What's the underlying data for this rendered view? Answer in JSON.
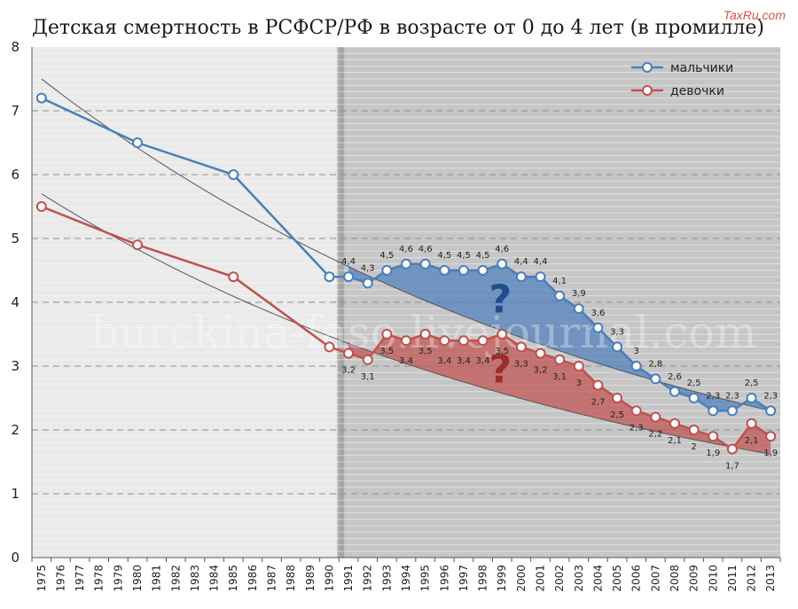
{
  "chart_data": {
    "type": "line",
    "title": "Детская смертность в РСФСР/РФ в возрасте от 0 до 4 лет (в промилле)",
    "brand": "TaxRu.com",
    "watermark": "burckina-faso.livejournal.com",
    "categories": [
      "1975",
      "1976",
      "1977",
      "1978",
      "1979",
      "1980",
      "1981",
      "1982",
      "1983",
      "1984",
      "1985",
      "1986",
      "1987",
      "1988",
      "1989",
      "1990",
      "1991",
      "1992",
      "1993",
      "1994",
      "1995",
      "1996",
      "1997",
      "1998",
      "1999",
      "2000",
      "2001",
      "2002",
      "2003",
      "2004",
      "2005",
      "2006",
      "2007",
      "2008",
      "2009",
      "2010",
      "2011",
      "2012",
      "2013"
    ],
    "ylim": [
      0,
      8
    ],
    "yticks": [
      "0",
      "1",
      "2",
      "3",
      "4",
      "5",
      "6",
      "7",
      "8"
    ],
    "shaded_from": "1991",
    "legend_position": "top-right",
    "series": [
      {
        "name": "мальчики",
        "color": "#4a7ebb",
        "x": [
          "1975",
          "1980",
          "1985",
          "1990",
          "1991",
          "1992",
          "1993",
          "1994",
          "1995",
          "1996",
          "1997",
          "1998",
          "1999",
          "2000",
          "2001",
          "2002",
          "2003",
          "2004",
          "2005",
          "2006",
          "2007",
          "2008",
          "2009",
          "2010",
          "2011",
          "2012",
          "2013"
        ],
        "values": [
          7.2,
          6.5,
          6.0,
          4.4,
          4.4,
          4.3,
          4.5,
          4.6,
          4.6,
          4.5,
          4.5,
          4.5,
          4.6,
          4.4,
          4.4,
          4.1,
          3.9,
          3.6,
          3.3,
          3.0,
          2.8,
          2.6,
          2.5,
          2.3,
          2.3,
          2.5,
          2.3
        ],
        "labels": [
          {
            "x": "1991",
            "text": "4,4"
          },
          {
            "x": "1992",
            "text": "4,3"
          },
          {
            "x": "1993",
            "text": "4,5"
          },
          {
            "x": "1994",
            "text": "4,6"
          },
          {
            "x": "1995",
            "text": "4,6"
          },
          {
            "x": "1996",
            "text": "4,5"
          },
          {
            "x": "1997",
            "text": "4,5"
          },
          {
            "x": "1998",
            "text": "4,5"
          },
          {
            "x": "1999",
            "text": "4,6"
          },
          {
            "x": "2000",
            "text": "4,4"
          },
          {
            "x": "2001",
            "text": "4,4"
          },
          {
            "x": "2002",
            "text": "4,1"
          },
          {
            "x": "2003",
            "text": "3,9"
          },
          {
            "x": "2004",
            "text": "3,6"
          },
          {
            "x": "2005",
            "text": "3,3"
          },
          {
            "x": "2006",
            "text": "3"
          },
          {
            "x": "2007",
            "text": "2,8"
          },
          {
            "x": "2008",
            "text": "2,6"
          },
          {
            "x": "2009",
            "text": "2,5"
          },
          {
            "x": "2010",
            "text": "2,3"
          },
          {
            "x": "2011",
            "text": "2,3"
          },
          {
            "x": "2012",
            "text": "2,5"
          },
          {
            "x": "2013",
            "text": "2,3"
          }
        ],
        "trend": {
          "from": "1975",
          "to": "2013",
          "start": 7.5,
          "end": 2.3
        }
      },
      {
        "name": "девочки",
        "color": "#c0504d",
        "x": [
          "1975",
          "1980",
          "1985",
          "1990",
          "1991",
          "1992",
          "1993",
          "1994",
          "1995",
          "1996",
          "1997",
          "1998",
          "1999",
          "2000",
          "2001",
          "2002",
          "2003",
          "2004",
          "2005",
          "2006",
          "2007",
          "2008",
          "2009",
          "2010",
          "2011",
          "2012",
          "2013"
        ],
        "values": [
          5.5,
          4.9,
          4.4,
          3.3,
          3.2,
          3.1,
          3.5,
          3.4,
          3.5,
          3.4,
          3.4,
          3.4,
          3.5,
          3.3,
          3.2,
          3.1,
          3.0,
          2.7,
          2.5,
          2.3,
          2.2,
          2.1,
          2.0,
          1.9,
          1.7,
          2.1,
          1.9
        ],
        "labels": [
          {
            "x": "1991",
            "text": "3,2"
          },
          {
            "x": "1992",
            "text": "3,1"
          },
          {
            "x": "1993",
            "text": "3,5"
          },
          {
            "x": "1994",
            "text": "3,4"
          },
          {
            "x": "1995",
            "text": "3,5"
          },
          {
            "x": "1996",
            "text": "3,4"
          },
          {
            "x": "1997",
            "text": "3,4"
          },
          {
            "x": "1998",
            "text": "3,4"
          },
          {
            "x": "1999",
            "text": "3,5"
          },
          {
            "x": "2000",
            "text": "3,3"
          },
          {
            "x": "2001",
            "text": "3,2"
          },
          {
            "x": "2002",
            "text": "3,1"
          },
          {
            "x": "2003",
            "text": "3"
          },
          {
            "x": "2004",
            "text": "2,7"
          },
          {
            "x": "2005",
            "text": "2,5"
          },
          {
            "x": "2006",
            "text": "2,3"
          },
          {
            "x": "2007",
            "text": "2,2"
          },
          {
            "x": "2008",
            "text": "2,1"
          },
          {
            "x": "2009",
            "text": "2"
          },
          {
            "x": "2010",
            "text": "1,9"
          },
          {
            "x": "2011",
            "text": "1,7"
          },
          {
            "x": "2012",
            "text": "2,1"
          },
          {
            "x": "2013",
            "text": "1,9"
          }
        ],
        "trend": {
          "from": "1975",
          "to": "2013",
          "start": 5.7,
          "end": 1.62
        }
      }
    ],
    "annotations": [
      {
        "text": "?",
        "x": "1999",
        "y": 4.05,
        "color": "#1f4e8c"
      },
      {
        "text": "?",
        "x": "1999",
        "y": 2.95,
        "color": "#9b2c2c"
      }
    ]
  }
}
